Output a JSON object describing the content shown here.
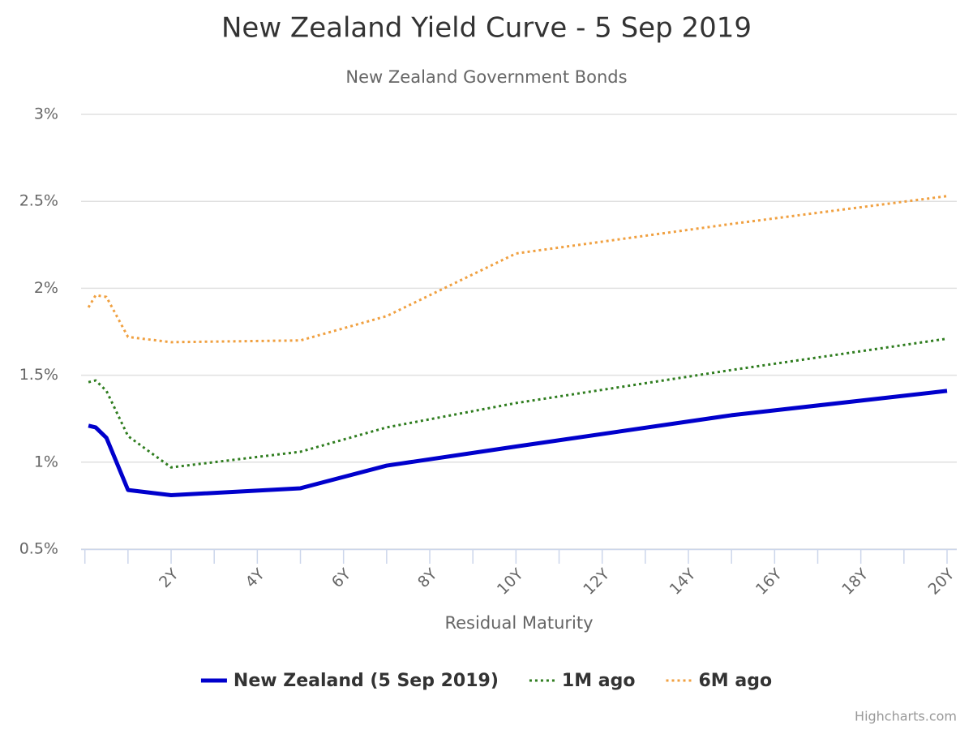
{
  "chart_data": {
    "type": "line",
    "title": "New Zealand Yield Curve - 5 Sep 2019",
    "subtitle": "New Zealand Government Bonds",
    "x_label": "Residual Maturity",
    "credits": "Highcharts.com",
    "x": [
      0.083,
      0.25,
      0.5,
      1,
      2,
      5,
      7,
      10,
      15,
      20
    ],
    "series": [
      {
        "name": "New Zealand (5 Sep 2019)",
        "color": "#0000cc",
        "dash": "solid",
        "width": 5,
        "values": [
          1.21,
          1.2,
          1.14,
          0.84,
          0.81,
          0.85,
          0.98,
          1.09,
          1.27,
          1.41
        ]
      },
      {
        "name": "1M ago",
        "color": "#2f7d1f",
        "dash": "dotted",
        "width": 3,
        "values": [
          1.46,
          1.47,
          1.41,
          1.15,
          0.97,
          1.06,
          1.2,
          1.34,
          1.53,
          1.71
        ]
      },
      {
        "name": "6M ago",
        "color": "#f0a040",
        "dash": "dotted",
        "width": 3,
        "values": [
          1.89,
          1.96,
          1.95,
          1.72,
          1.69,
          1.7,
          1.84,
          2.2,
          2.37,
          2.53
        ]
      }
    ],
    "xlim": [
      0,
      20
    ],
    "xticks": [
      {
        "value": 2,
        "label": "2Y"
      },
      {
        "value": 4,
        "label": "4Y"
      },
      {
        "value": 6,
        "label": "6Y"
      },
      {
        "value": 8,
        "label": "8Y"
      },
      {
        "value": 10,
        "label": "10Y"
      },
      {
        "value": 12,
        "label": "12Y"
      },
      {
        "value": 14,
        "label": "14Y"
      },
      {
        "value": 16,
        "label": "16Y"
      },
      {
        "value": 18,
        "label": "18Y"
      },
      {
        "value": 20,
        "label": "20Y"
      }
    ],
    "xminorticks": [
      0,
      1,
      3,
      5,
      7,
      9,
      11,
      13,
      15,
      17,
      19
    ],
    "ylim": [
      0.5,
      3
    ],
    "yticks": [
      {
        "value": 0.5,
        "label": "0.5%"
      },
      {
        "value": 1,
        "label": "1%"
      },
      {
        "value": 1.5,
        "label": "1.5%"
      },
      {
        "value": 2,
        "label": "2%"
      },
      {
        "value": 2.5,
        "label": "2.5%"
      },
      {
        "value": 3,
        "label": "3%"
      }
    ],
    "grid": true,
    "legend": "bottom"
  }
}
